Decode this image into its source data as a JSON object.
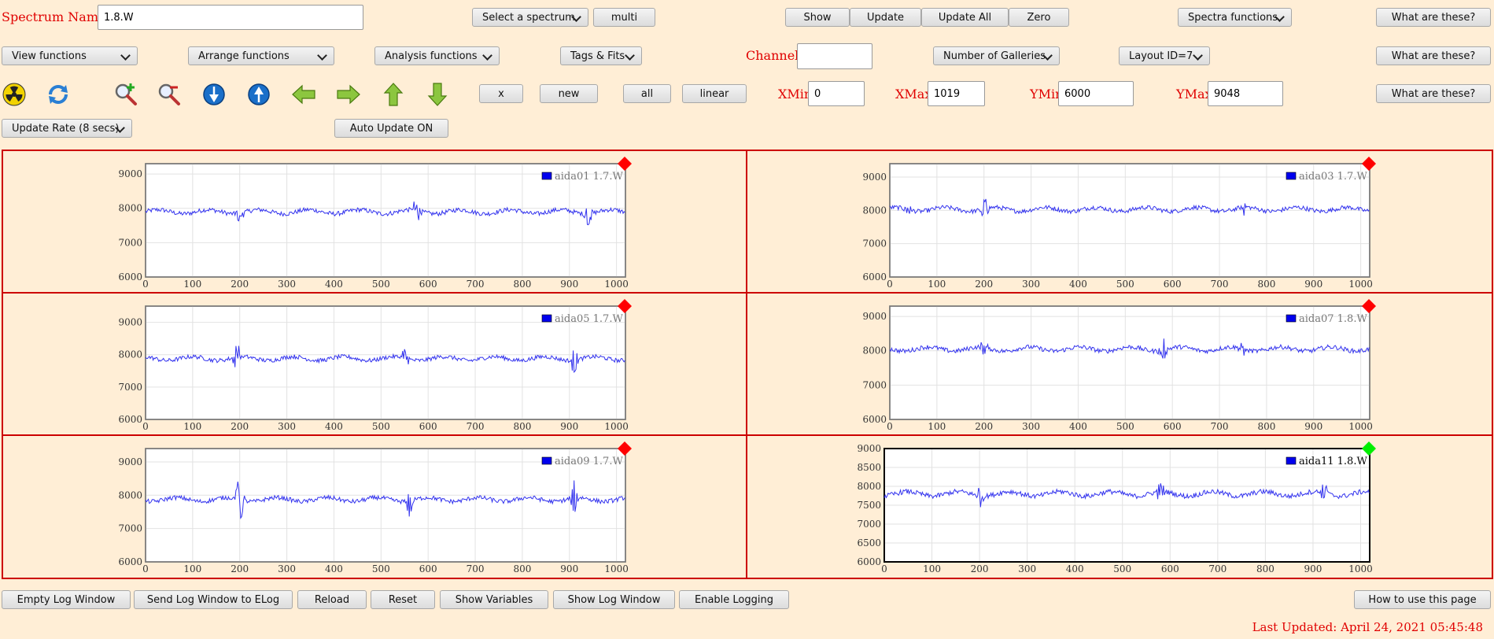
{
  "top": {
    "spectrum_name_label": "Spectrum Name:",
    "spectrum_name_value": "1.8.W",
    "select_spectrum": "Select a spectrum",
    "multi": "multi",
    "show": "Show",
    "update": "Update",
    "update_all": "Update All",
    "zero": "Zero",
    "spectra_functions": "Spectra functions",
    "what_are_these": "What are these?"
  },
  "row2": {
    "view_functions": "View functions",
    "arrange_functions": "Arrange functions",
    "analysis_functions": "Analysis functions",
    "tags_fits": "Tags & Fits",
    "channel_label": "Channel:",
    "channel_value": "",
    "number_of_galleries": "Number of Galleries",
    "layout": "Layout ID=7",
    "what_are_these": "What are these?"
  },
  "row3": {
    "x_btn": "x",
    "new_btn": "new",
    "all_btn": "all",
    "linear_btn": "linear",
    "xmin_label": "XMin",
    "xmin_value": "0",
    "xmax_label": "XMax",
    "xmax_value": "1019",
    "ymin_label": "YMin",
    "ymin_value": "6000",
    "ymax_label": "YMax",
    "ymax_value": "9048",
    "what_are_these": "What are these?"
  },
  "row4": {
    "update_rate": "Update Rate (8 secs)",
    "auto_update": "Auto Update ON"
  },
  "icons": [
    "radiation-icon",
    "refresh-icon",
    "zoom-in-icon",
    "zoom-out-icon",
    "expand-y-icon",
    "shrink-y-icon",
    "left-arrow-icon",
    "right-arrow-icon",
    "up-arrow-icon",
    "down-arrow-icon"
  ],
  "colors": {
    "trace": "#3333ee",
    "legend_box": "#0000ee",
    "status_red": "#ff0000",
    "status_green": "#00ee00",
    "panel_border": "#cc0000"
  },
  "chart_data": [
    {
      "type": "line",
      "series": [
        {
          "name": "aida01 1.7.W"
        }
      ],
      "x_ticks": [
        "0",
        "100",
        "200",
        "300",
        "400",
        "500",
        "600",
        "700",
        "800",
        "900",
        "1000"
      ],
      "y_ticks": [
        "6000",
        "7000",
        "8000",
        "9000"
      ],
      "xlim": [
        0,
        1019
      ],
      "ylim": [
        6000,
        9300
      ],
      "baseline": 7900,
      "status": "red",
      "spikes": [
        [
          200,
          400
        ],
        [
          575,
          450
        ],
        [
          940,
          380
        ]
      ]
    },
    {
      "type": "line",
      "series": [
        {
          "name": "aida03 1.7.W"
        }
      ],
      "x_ticks": [
        "0",
        "100",
        "200",
        "300",
        "400",
        "500",
        "600",
        "700",
        "800",
        "900",
        "1000"
      ],
      "y_ticks": [
        "6000",
        "7000",
        "8000",
        "9000"
      ],
      "xlim": [
        0,
        1019
      ],
      "ylim": [
        6000,
        9400
      ],
      "baseline": 8030,
      "status": "red",
      "spikes": [
        [
          200,
          450
        ],
        [
          40,
          250
        ],
        [
          750,
          250
        ]
      ]
    },
    {
      "type": "line",
      "series": [
        {
          "name": "aida05 1.7.W"
        }
      ],
      "x_ticks": [
        "0",
        "100",
        "200",
        "300",
        "400",
        "500",
        "600",
        "700",
        "800",
        "900",
        "1000"
      ],
      "y_ticks": [
        "6000",
        "7000",
        "8000",
        "9000"
      ],
      "xlim": [
        0,
        1019
      ],
      "ylim": [
        6000,
        9500
      ],
      "baseline": 7880,
      "status": "red",
      "spikes": [
        [
          195,
          650
        ],
        [
          550,
          400
        ],
        [
          910,
          500
        ]
      ]
    },
    {
      "type": "line",
      "series": [
        {
          "name": "aida07 1.8.W"
        }
      ],
      "x_ticks": [
        "0",
        "100",
        "200",
        "300",
        "400",
        "500",
        "600",
        "700",
        "800",
        "900",
        "1000"
      ],
      "y_ticks": [
        "6000",
        "7000",
        "8000",
        "9000"
      ],
      "xlim": [
        0,
        1019
      ],
      "ylim": [
        6000,
        9300
      ],
      "baseline": 8050,
      "status": "red",
      "spikes": [
        [
          200,
          250
        ],
        [
          580,
          350
        ],
        [
          750,
          200
        ]
      ]
    },
    {
      "type": "line",
      "series": [
        {
          "name": "aida09 1.7.W"
        }
      ],
      "x_ticks": [
        "0",
        "100",
        "200",
        "300",
        "400",
        "500",
        "600",
        "700",
        "800",
        "900",
        "1000"
      ],
      "y_ticks": [
        "6000",
        "7000",
        "8000",
        "9000"
      ],
      "xlim": [
        0,
        1019
      ],
      "ylim": [
        6000,
        9400
      ],
      "baseline": 7870,
      "status": "red",
      "spikes": [
        [
          200,
          950
        ],
        [
          560,
          650
        ],
        [
          910,
          600
        ]
      ]
    },
    {
      "type": "line",
      "series": [
        {
          "name": "aida11 1.8.W"
        }
      ],
      "x_ticks": [
        "0",
        "100",
        "200",
        "300",
        "400",
        "500",
        "600",
        "700",
        "800",
        "900",
        "1000"
      ],
      "y_ticks": [
        "6000",
        "6500",
        "7000",
        "7500",
        "8000",
        "8500",
        "9000"
      ],
      "xlim": [
        0,
        1019
      ],
      "ylim": [
        6000,
        9000
      ],
      "baseline": 7800,
      "status": "green",
      "spikes": [
        [
          200,
          350
        ],
        [
          580,
          300
        ],
        [
          925,
          350
        ]
      ]
    }
  ],
  "bottom": {
    "empty_log": "Empty Log Window",
    "send_log": "Send Log Window to ELog",
    "reload": "Reload",
    "reset": "Reset",
    "show_variables": "Show Variables",
    "show_log": "Show Log Window",
    "enable_logging": "Enable Logging",
    "how_to": "How to use this page",
    "last_updated": "Last Updated: April 24, 2021 05:45:48"
  }
}
